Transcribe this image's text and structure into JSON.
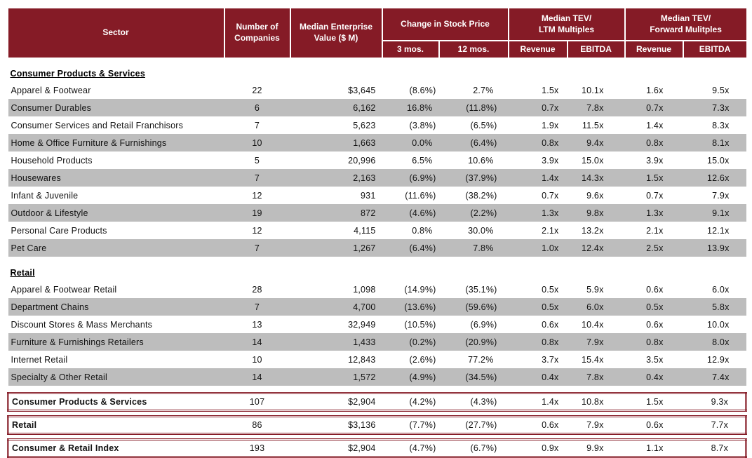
{
  "colors": {
    "header_bg": "#851B26",
    "header_text": "#FFFFFF",
    "row_shade": "#BDBDBD",
    "summary_border": "#851B26"
  },
  "table": {
    "header": {
      "sector": "Sector",
      "companies": "Number of\nCompanies",
      "enterprise_value": "Median Enterprise\nValue ($ M)",
      "stock_price_group": "Change in Stock Price",
      "ltm_group": "Median TEV/\nLTM Multiples",
      "forward_group": "Median TEV/\nForward Mulitples",
      "sub": [
        "3 mos.",
        "12 mos.",
        "Revenue",
        "EBITDA",
        "Revenue",
        "EBITDA"
      ]
    },
    "sections": [
      {
        "label": "Consumer Products & Services",
        "rows": [
          [
            "Apparel & Footwear",
            "22",
            "$3,645",
            "(8.6%)",
            "2.7%",
            "1.5x",
            "10.1x",
            "1.6x",
            "9.5x"
          ],
          [
            "Consumer Durables",
            "6",
            "6,162",
            "16.8%",
            "(11.8%)",
            "0.7x",
            "7.8x",
            "0.7x",
            "7.3x"
          ],
          [
            "Consumer Services and Retail Franchisors",
            "7",
            "5,623",
            "(3.8%)",
            "(6.5%)",
            "1.9x",
            "11.5x",
            "1.4x",
            "8.3x"
          ],
          [
            "Home & Office Furniture & Furnishings",
            "10",
            "1,663",
            "0.0%",
            "(6.4%)",
            "0.8x",
            "9.4x",
            "0.8x",
            "8.1x"
          ],
          [
            "Household Products",
            "5",
            "20,996",
            "6.5%",
            "10.6%",
            "3.9x",
            "15.0x",
            "3.9x",
            "15.0x"
          ],
          [
            "Housewares",
            "7",
            "2,163",
            "(6.9%)",
            "(37.9%)",
            "1.4x",
            "14.3x",
            "1.5x",
            "12.6x"
          ],
          [
            "Infant & Juvenile",
            "12",
            "931",
            "(11.6%)",
            "(38.2%)",
            "0.7x",
            "9.6x",
            "0.7x",
            "7.9x"
          ],
          [
            "Outdoor & Lifestyle",
            "19",
            "872",
            "(4.6%)",
            "(2.2%)",
            "1.3x",
            "9.8x",
            "1.3x",
            "9.1x"
          ],
          [
            "Personal Care Products",
            "12",
            "4,115",
            "0.8%",
            "30.0%",
            "2.1x",
            "13.2x",
            "2.1x",
            "12.1x"
          ],
          [
            "Pet Care",
            "7",
            "1,267",
            "(6.4%)",
            "7.8%",
            "1.0x",
            "12.4x",
            "2.5x",
            "13.9x"
          ]
        ]
      },
      {
        "label": "Retail",
        "rows": [
          [
            "Apparel & Footwear Retail",
            "28",
            "1,098",
            "(14.9%)",
            "(35.1%)",
            "0.5x",
            "5.9x",
            "0.6x",
            "6.0x"
          ],
          [
            "Department Chains",
            "7",
            "4,700",
            "(13.6%)",
            "(59.6%)",
            "0.5x",
            "6.0x",
            "0.5x",
            "5.8x"
          ],
          [
            "Discount Stores & Mass Merchants",
            "13",
            "32,949",
            "(10.5%)",
            "(6.9%)",
            "0.6x",
            "10.4x",
            "0.6x",
            "10.0x"
          ],
          [
            "Furniture & Furnishings Retailers",
            "14",
            "1,433",
            "(0.2%)",
            "(20.9%)",
            "0.8x",
            "7.9x",
            "0.8x",
            "8.0x"
          ],
          [
            "Internet Retail",
            "10",
            "12,843",
            "(2.6%)",
            "77.2%",
            "3.7x",
            "15.4x",
            "3.5x",
            "12.9x"
          ],
          [
            "Specialty & Other Retail",
            "14",
            "1,572",
            "(4.9%)",
            "(34.5%)",
            "0.4x",
            "7.8x",
            "0.4x",
            "7.4x"
          ]
        ]
      }
    ],
    "summary": [
      [
        "Consumer Products & Services",
        "107",
        "$2,904",
        "(4.2%)",
        "(4.3%)",
        "1.4x",
        "10.8x",
        "1.5x",
        "9.3x"
      ],
      [
        "Retail",
        "86",
        "$3,136",
        "(7.7%)",
        "(27.7%)",
        "0.6x",
        "7.9x",
        "0.6x",
        "7.7x"
      ],
      [
        "Consumer & Retail Index",
        "193",
        "$2,904",
        "(4.7%)",
        "(6.7%)",
        "0.9x",
        "9.9x",
        "1.1x",
        "8.7x"
      ]
    ]
  }
}
